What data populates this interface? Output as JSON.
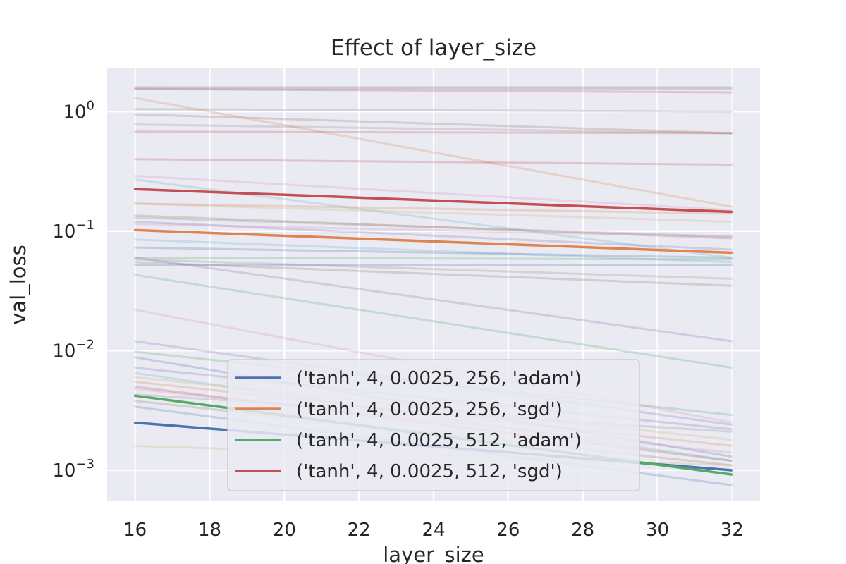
{
  "chart_data": {
    "type": "line",
    "title": "Effect of layer_size",
    "xlabel": "layer_size",
    "ylabel": "val_loss",
    "yscale": "log",
    "xlim": [
      15.25,
      32.75
    ],
    "ylim": [
      0.00055,
      2.3
    ],
    "x": [
      16,
      32
    ],
    "x_ticks": [
      16,
      18,
      20,
      22,
      24,
      26,
      28,
      30,
      32
    ],
    "y_ticks": [
      {
        "value": 0.001,
        "base": "10",
        "exp": "−3"
      },
      {
        "value": 0.01,
        "base": "10",
        "exp": "−2"
      },
      {
        "value": 0.1,
        "base": "10",
        "exp": "−1"
      },
      {
        "value": 1,
        "base": "10",
        "exp": "0"
      }
    ],
    "grid": true,
    "legend_position": "lower-center",
    "series": [
      {
        "name": "('tanh', 4, 0.0025, 256, 'adam')",
        "color": "#4c72b0",
        "values": [
          0.0025,
          0.001
        ]
      },
      {
        "name": "('tanh', 4, 0.0025, 256, 'sgd')",
        "color": "#dd8452",
        "values": [
          0.102,
          0.066
        ]
      },
      {
        "name": "('tanh', 4, 0.0025, 512, 'adam')",
        "color": "#55a868",
        "values": [
          0.0042,
          0.00092
        ]
      },
      {
        "name": "('tanh', 4, 0.0025, 512, 'sgd')",
        "color": "#c44e52",
        "values": [
          0.225,
          0.145
        ]
      }
    ],
    "background_series": [
      {
        "color": "#8c8c8c",
        "values": [
          1.6,
          1.6
        ]
      },
      {
        "color": "#c44e52",
        "values": [
          1.55,
          1.45
        ]
      },
      {
        "color": "#8172b3",
        "values": [
          1.55,
          1.55
        ]
      },
      {
        "color": "#8c8c8c",
        "values": [
          1.05,
          1.0
        ]
      },
      {
        "color": "#937860",
        "values": [
          0.95,
          0.66
        ]
      },
      {
        "color": "#8c8c8c",
        "values": [
          0.78,
          0.66
        ]
      },
      {
        "color": "#c44e52",
        "values": [
          0.68,
          0.66
        ]
      },
      {
        "color": "#dd8452",
        "values": [
          1.3,
          0.16
        ]
      },
      {
        "color": "#c44e52",
        "values": [
          0.4,
          0.36
        ]
      },
      {
        "color": "#da8bc3",
        "values": [
          0.29,
          0.15
        ]
      },
      {
        "color": "#64b5cd",
        "values": [
          0.27,
          0.06
        ]
      },
      {
        "color": "#ccb974",
        "values": [
          0.17,
          0.12
        ]
      },
      {
        "color": "#dd8452",
        "values": [
          0.17,
          0.14
        ]
      },
      {
        "color": "#8c8c8c",
        "values": [
          0.13,
          0.09
        ]
      },
      {
        "color": "#937860",
        "values": [
          0.135,
          0.087
        ]
      },
      {
        "color": "#8172b3",
        "values": [
          0.12,
          0.07
        ]
      },
      {
        "color": "#da8bc3",
        "values": [
          0.115,
          0.09
        ]
      },
      {
        "color": "#64b5cd",
        "values": [
          0.085,
          0.055
        ]
      },
      {
        "color": "#4c72b0",
        "values": [
          0.073,
          0.06
        ]
      },
      {
        "color": "#55a868",
        "values": [
          0.06,
          0.058
        ]
      },
      {
        "color": "#8c8c8c",
        "values": [
          0.058,
          0.04
        ]
      },
      {
        "color": "#937860",
        "values": [
          0.055,
          0.035
        ]
      },
      {
        "color": "#4c72b0",
        "values": [
          0.052,
          0.052
        ]
      },
      {
        "color": "#8172b3",
        "values": [
          0.06,
          0.012
        ]
      },
      {
        "color": "#55a868",
        "values": [
          0.043,
          0.0072
        ]
      },
      {
        "color": "#da8bc3",
        "values": [
          0.022,
          0.0025
        ]
      },
      {
        "color": "#8172b3",
        "values": [
          0.012,
          0.0024
        ]
      },
      {
        "color": "#55a868",
        "values": [
          0.0098,
          0.0029
        ]
      },
      {
        "color": "#4c72b0",
        "values": [
          0.0088,
          0.0013
        ]
      },
      {
        "color": "#8172b3",
        "values": [
          0.0072,
          0.0022
        ]
      },
      {
        "color": "#64b5cd",
        "values": [
          0.0065,
          0.0012
        ]
      },
      {
        "color": "#ccb974",
        "values": [
          0.006,
          0.0018
        ]
      },
      {
        "color": "#dd8452",
        "values": [
          0.0055,
          0.0016
        ]
      },
      {
        "color": "#da8bc3",
        "values": [
          0.0048,
          0.0014
        ]
      },
      {
        "color": "#c44e52",
        "values": [
          0.005,
          0.0012
        ]
      },
      {
        "color": "#937860",
        "values": [
          0.0038,
          0.0011
        ]
      },
      {
        "color": "#4c72b0",
        "values": [
          0.0034,
          0.00075
        ]
      },
      {
        "color": "#ccb974",
        "values": [
          0.0016,
          0.0011
        ]
      },
      {
        "color": "#8c8c8c",
        "values": [
          0.0043,
          0.0021
        ]
      }
    ]
  }
}
